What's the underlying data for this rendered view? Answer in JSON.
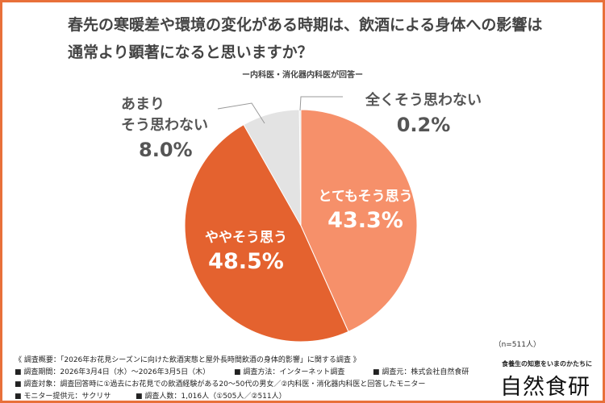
{
  "title_line1": "春先の寒暖差や環境の変化がある時期は、飲酒による身体への影響は",
  "title_line2": "通常より顕著になると思いますか？",
  "subtitle": "ー内科医・消化器内科医が回答ー",
  "sample": "（n=511人）",
  "colors": {
    "border": "#E8703A",
    "very": "#F6906A",
    "somewhat": "#E4622F",
    "not_much": "#E3E3E3",
    "not_at_all": "#E3E3E3"
  },
  "chart_data": {
    "type": "pie",
    "start": "top",
    "direction": "clockwise",
    "slices": [
      {
        "label": "とてもそう思う",
        "value": 43.3,
        "display": "43.3%"
      },
      {
        "label": "ややそう思う",
        "value": 48.5,
        "display": "48.5%"
      },
      {
        "label_lines": [
          "あまり",
          "そう思わない"
        ],
        "value": 8.0,
        "display": "8.0%"
      },
      {
        "label": "全くそう思わない",
        "value": 0.2,
        "display": "0.2%"
      }
    ]
  },
  "notes": {
    "overview": "《 調査概要：「2026年お花見シーズンに向けた飲酒実態と屋外長時間飲酒の身体的影響」に関する調査 》",
    "period": "■ 調査期間：2026年3月4日（水）〜2026年3月5日（木）",
    "method": "■ 調査方法：インターネット調査",
    "source": "■ 調査元：株式会社自然食研",
    "target": "■ 調査対象：調査回答時に①過去にお花見での飲酒経験がある20〜50代の男女／②内科医・消化器内科医と回答したモニター",
    "provider": "■ モニター提供元：サクリサ",
    "count": "■ 調査人数：1,016人（①505人／②511人）"
  },
  "brand": {
    "tagline": "食養生の知恵をいまのかたちに",
    "name": "自然食研"
  }
}
